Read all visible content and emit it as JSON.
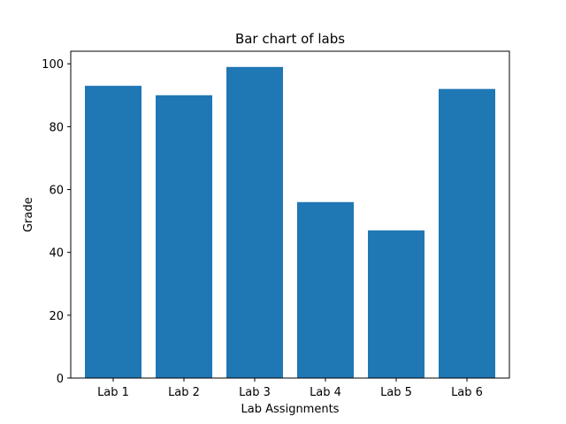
{
  "chart_data": {
    "type": "bar",
    "title": "Bar chart of labs",
    "xlabel": "Lab Assignments",
    "ylabel": "Grade",
    "categories": [
      "Lab 1",
      "Lab 2",
      "Lab 3",
      "Lab 4",
      "Lab 5",
      "Lab 6"
    ],
    "values": [
      93,
      90,
      99,
      56,
      47,
      92
    ],
    "ylim": [
      0,
      104
    ],
    "yticks": [
      0,
      20,
      40,
      60,
      80,
      100
    ],
    "grid": false,
    "bar_color": "#1f77b4"
  }
}
